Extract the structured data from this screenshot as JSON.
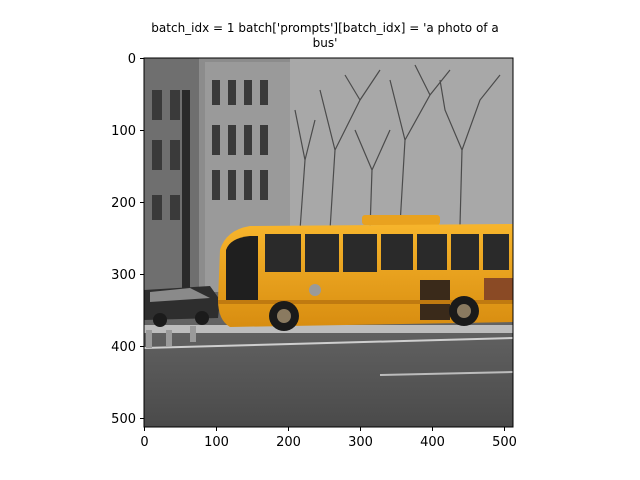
{
  "figure": {
    "title_line1": "batch_idx = 1 batch['prompts'][batch_idx] = 'a photo of a",
    "title_line2": "bus'",
    "image_content": "black-and-white street scene with a yellow city bus in color",
    "x_ticks": [
      "0",
      "100",
      "200",
      "300",
      "400",
      "500"
    ],
    "y_ticks": [
      "0",
      "100",
      "200",
      "300",
      "400",
      "500"
    ],
    "x_range": [
      0,
      512
    ],
    "y_range": [
      0,
      512
    ],
    "y_axis_inverted": true
  },
  "colors": {
    "bus_yellow": "#f0a21b",
    "bus_trim": "#2a2a2a",
    "sky": "#d8d8d8",
    "road": "#5a5a5a"
  }
}
